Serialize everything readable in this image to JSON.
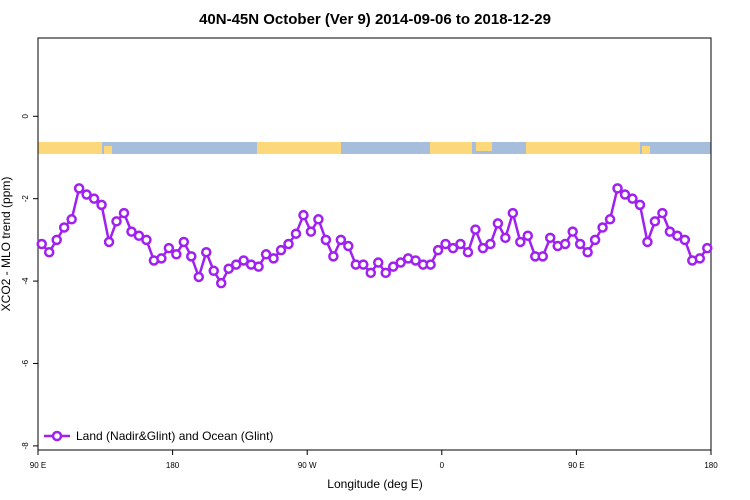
{
  "chart_data": {
    "type": "line",
    "title": "40N-45N October (Ver 9)   2014-09-06 to 2018-12-29",
    "xlabel": "Longitude (deg E)",
    "ylabel": "XCO2 - MLO trend (ppm)",
    "x": [
      92.5,
      97.5,
      102.5,
      107.5,
      112.5,
      117.5,
      122.5,
      127.5,
      132.5,
      137.5,
      142.5,
      147.5,
      152.5,
      157.5,
      162.5,
      167.5,
      172.5,
      177.5,
      182.5,
      187.5,
      192.5,
      197.5,
      202.5,
      207.5,
      212.5,
      217.5,
      222.5,
      227.5,
      232.5,
      237.5,
      242.5,
      247.5,
      252.5,
      257.5,
      262.5,
      267.5,
      272.5,
      277.5,
      282.5,
      287.5,
      292.5,
      297.5,
      302.5,
      307.5,
      312.5,
      317.5,
      322.5,
      327.5,
      332.5,
      337.5,
      342.5,
      347.5,
      352.5,
      357.5,
      362.5,
      367.5,
      372.5,
      377.5,
      382.5,
      387.5,
      392.5,
      397.5,
      402.5,
      407.5,
      412.5,
      417.5,
      422.5,
      427.5,
      432.5,
      437.5,
      442.5,
      447.5,
      452.5,
      457.5,
      462.5,
      467.5,
      472.5,
      477.5,
      482.5,
      487.5,
      492.5,
      497.5,
      502.5,
      507.5,
      512.5,
      517.5,
      522.5,
      527.5,
      532.5,
      537.5
    ],
    "series": [
      {
        "name": "Land (Nadir&Glint) and Ocean (Glint)",
        "color": "#a020f0",
        "values": [
          -3.1,
          -3.3,
          -3.0,
          -2.7,
          -2.5,
          -1.75,
          -1.9,
          -2.0,
          -2.15,
          -3.05,
          -2.55,
          -2.35,
          -2.8,
          -2.9,
          -3.0,
          -3.5,
          -3.45,
          -3.2,
          -3.35,
          -3.05,
          -3.4,
          -3.9,
          -3.3,
          -3.75,
          -4.05,
          -3.7,
          -3.6,
          -3.5,
          -3.6,
          -3.65,
          -3.35,
          -3.45,
          -3.25,
          -3.1,
          -2.85,
          -2.4,
          -2.8,
          -2.5,
          -3.0,
          -3.4,
          -3.0,
          -3.15,
          -3.6,
          -3.6,
          -3.8,
          -3.55,
          -3.8,
          -3.65,
          -3.55,
          -3.45,
          -3.5,
          -3.6,
          -3.6,
          -3.25,
          -3.1,
          -3.2,
          -3.1,
          -3.3,
          -2.75,
          -3.2,
          -3.1,
          -2.6,
          -2.95,
          -2.35,
          -3.05,
          -2.9,
          -3.4,
          -3.4,
          -2.95,
          -3.15,
          -3.1,
          -2.8,
          -3.1,
          -3.3,
          -3.0,
          -2.7,
          -2.5,
          -1.75,
          -1.9,
          -2.0,
          -2.15,
          -3.05,
          -2.55,
          -2.35,
          -2.8,
          -2.9,
          -3.0,
          -3.5,
          -3.45,
          -3.2
        ]
      }
    ],
    "xlim": [
      90,
      540
    ],
    "xticks": [
      {
        "value": 90,
        "label": "90 E"
      },
      180,
      {
        "value": 270,
        "label": "90 W"
      },
      {
        "value": 360,
        "label": "0"
      },
      {
        "value": 450,
        "label": "90 E"
      },
      180
    ],
    "ylim": [
      -8.1,
      1.9
    ],
    "yticks": [
      -8,
      -6,
      -4,
      -2,
      0
    ],
    "legend": "bottom-left"
  }
}
